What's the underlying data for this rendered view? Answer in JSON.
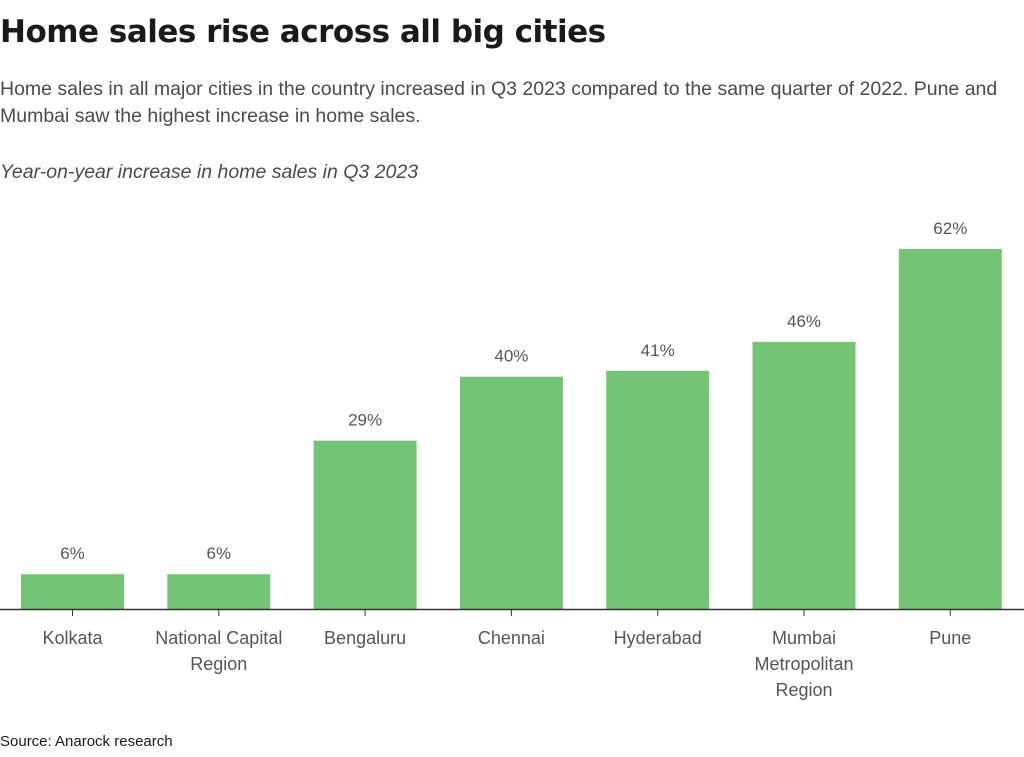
{
  "header": {
    "title": "Home sales rise across all big cities",
    "subtitle": "Home sales in all major cities in the country increased in Q3 2023 compared to the same quarter of 2022. Pune and Mumbai saw the highest increase in home sales.",
    "chart_label": "Year-on-year increase in home sales in Q3 2023"
  },
  "footer": {
    "source": "Source: Anarock research"
  },
  "colors": {
    "bar": "#74c476",
    "axis": "#333333",
    "label": "#555555"
  },
  "chart_data": {
    "type": "bar",
    "title": "Home sales rise across all big cities",
    "subtitle": "Year-on-year increase in home sales in Q3 2023",
    "categories": [
      [
        "Kolkata"
      ],
      [
        "National Capital",
        "Region"
      ],
      [
        "Bengaluru"
      ],
      [
        "Chennai"
      ],
      [
        "Hyderabad"
      ],
      [
        "Mumbai",
        "Metropolitan",
        "Region"
      ],
      [
        "Pune"
      ]
    ],
    "values": [
      6,
      6,
      29,
      40,
      41,
      46,
      62
    ],
    "data_labels": [
      "6%",
      "6%",
      "29%",
      "40%",
      "41%",
      "46%",
      "62%"
    ],
    "xlabel": "",
    "ylabel": "",
    "ylim": [
      0,
      62
    ],
    "grid": false,
    "legend": "none"
  }
}
